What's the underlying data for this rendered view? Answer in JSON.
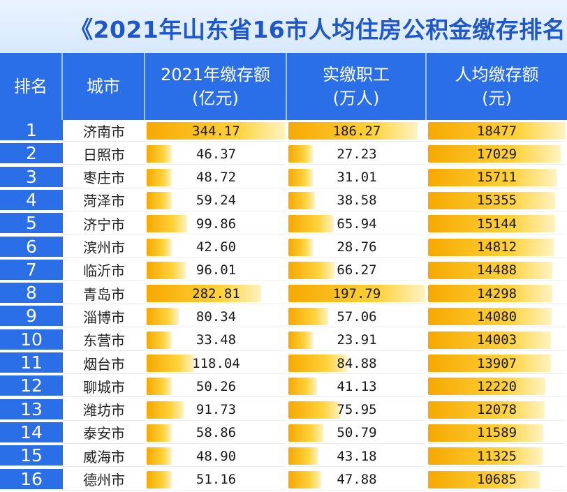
{
  "title": "《2021年山东省16市人均住房公积金缴存排名",
  "header": {
    "rank": "排名",
    "city": "城市",
    "amount": [
      "2021年缴存额",
      "(亿元)"
    ],
    "workers": [
      "实缴职工",
      "(万人)"
    ],
    "per_capita": [
      "人均缴存额",
      "(元)"
    ]
  },
  "colors": {
    "header_blue": "#2b6fe8",
    "title_blue": "#1f56c9",
    "bar_orange": "#f6a800",
    "bar_yellow": "#ffd23a"
  },
  "chart_data": {
    "type": "table",
    "title": "《2021年山东省16市人均住房公积金缴存排名",
    "columns": [
      "排名",
      "城市",
      "2021年缴存额(亿元)",
      "实缴职工(万人)",
      "人均缴存额(元)"
    ],
    "rows": [
      {
        "rank": "1",
        "city": "济南市",
        "amount": "344.17",
        "workers": "186.27",
        "per_capita": "18477"
      },
      {
        "rank": "2",
        "city": "日照市",
        "amount": "46.37",
        "workers": "27.23",
        "per_capita": "17029"
      },
      {
        "rank": "3",
        "city": "枣庄市",
        "amount": "48.72",
        "workers": "31.01",
        "per_capita": "15711"
      },
      {
        "rank": "4",
        "city": "菏泽市",
        "amount": "59.24",
        "workers": "38.58",
        "per_capita": "15355"
      },
      {
        "rank": "5",
        "city": "济宁市",
        "amount": "99.86",
        "workers": "65.94",
        "per_capita": "15144"
      },
      {
        "rank": "6",
        "city": "滨州市",
        "amount": "42.60",
        "workers": "28.76",
        "per_capita": "14812"
      },
      {
        "rank": "7",
        "city": "临沂市",
        "amount": "96.01",
        "workers": "66.27",
        "per_capita": "14488"
      },
      {
        "rank": "8",
        "city": "青岛市",
        "amount": "282.81",
        "workers": "197.79",
        "per_capita": "14298"
      },
      {
        "rank": "9",
        "city": "淄博市",
        "amount": "80.34",
        "workers": "57.06",
        "per_capita": "14080"
      },
      {
        "rank": "10",
        "city": "东营市",
        "amount": "33.48",
        "workers": "23.91",
        "per_capita": "14003"
      },
      {
        "rank": "11",
        "city": "烟台市",
        "amount": "118.04",
        "workers": "84.88",
        "per_capita": "13907"
      },
      {
        "rank": "12",
        "city": "聊城市",
        "amount": "50.26",
        "workers": "41.13",
        "per_capita": "12220"
      },
      {
        "rank": "13",
        "city": "潍坊市",
        "amount": "91.73",
        "workers": "75.95",
        "per_capita": "12078"
      },
      {
        "rank": "14",
        "city": "泰安市",
        "amount": "58.86",
        "workers": "50.79",
        "per_capita": "11589"
      },
      {
        "rank": "15",
        "city": "威海市",
        "amount": "48.90",
        "workers": "43.18",
        "per_capita": "11325"
      },
      {
        "rank": "16",
        "city": "德州市",
        "amount": "51.16",
        "workers": "47.88",
        "per_capita": "10685"
      }
    ]
  }
}
